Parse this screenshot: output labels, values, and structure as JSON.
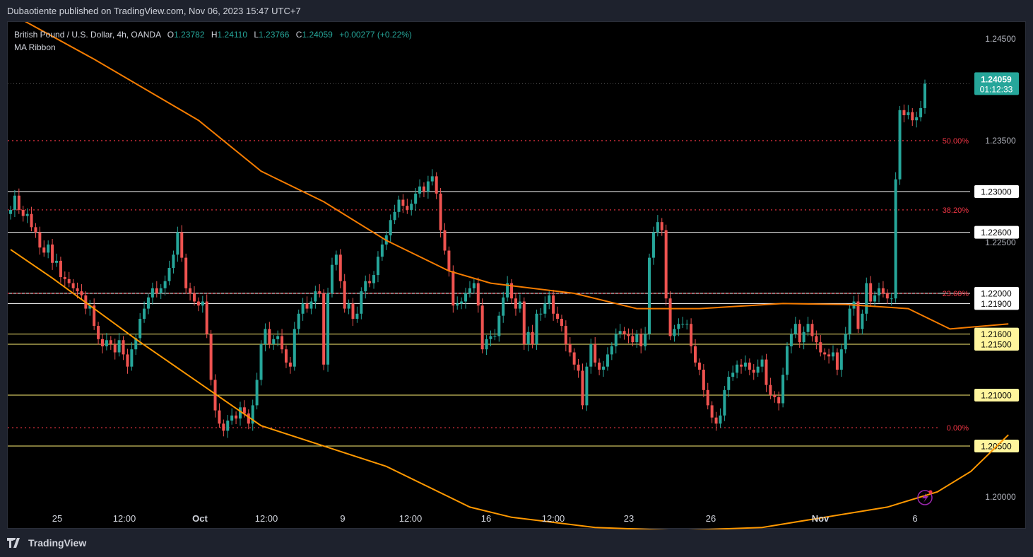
{
  "header": {
    "publish_text": "Dubaotiente published on TradingView.com, Nov 06, 2023 15:47 UTC+7"
  },
  "legend": {
    "symbol": "British Pound / U.S. Dollar, 4h, OANDA",
    "o_label": "O",
    "o_value": "1.23782",
    "h_label": "H",
    "h_value": "1.24110",
    "l_label": "L",
    "l_value": "1.23766",
    "c_label": "C",
    "c_value": "1.24059",
    "change": "+0.00277 (+0.22%)",
    "indicator": "MA Ribbon"
  },
  "price_tag": {
    "price": "1.24059",
    "countdown": "01:12:33"
  },
  "footer": {
    "brand": "TradingView"
  },
  "colors": {
    "up": "#26a69a",
    "down": "#ef5350",
    "ma_fast": "#ff9800",
    "ma_slow": "#f57c00",
    "fib": "#f23645",
    "support_yellow": "#fff176"
  },
  "chart_data": {
    "type": "candlestick",
    "ylim": [
      1.1975,
      1.2475
    ],
    "y_ticks": [
      "1.24500",
      "1.23500",
      "1.22500",
      "1.20000"
    ],
    "x_ticks": [
      "25",
      "12:00",
      "Oct",
      "12:00",
      "9",
      "12:00",
      "16",
      "12:00",
      "23",
      "26",
      "Nov",
      "6"
    ],
    "horizontal_levels": [
      {
        "price": 1.23,
        "label": "1.23000",
        "color": "white"
      },
      {
        "price": 1.226,
        "label": "1.22600",
        "color": "white"
      },
      {
        "price": 1.22,
        "label": "1.22000",
        "color": "white"
      },
      {
        "price": 1.219,
        "label": "1.21900",
        "color": "white"
      },
      {
        "price": 1.216,
        "label": "1.21600",
        "color": "yellow"
      },
      {
        "price": 1.215,
        "label": "1.21500",
        "color": "yellow"
      },
      {
        "price": 1.21,
        "label": "1.21000",
        "color": "yellow"
      },
      {
        "price": 1.205,
        "label": "1.20500",
        "color": "yellow"
      }
    ],
    "fib_levels": [
      {
        "price": 1.235,
        "label": "50.00%"
      },
      {
        "price": 1.2282,
        "label": "38.20%"
      },
      {
        "price": 1.22,
        "label": "23.60%"
      },
      {
        "price": 1.2068,
        "label": "0.00%"
      }
    ],
    "closes": [
      1.2282,
      1.2296,
      1.2282,
      1.2276,
      1.2278,
      1.2265,
      1.226,
      1.2245,
      1.224,
      1.2248,
      1.223,
      1.2232,
      1.2216,
      1.2214,
      1.221,
      1.2205,
      1.2202,
      1.2198,
      1.2185,
      1.2188,
      1.2168,
      1.2155,
      1.2148,
      1.2154,
      1.215,
      1.2142,
      1.2154,
      1.214,
      1.2128,
      1.2145,
      1.2156,
      1.2175,
      1.2185,
      1.2196,
      1.2205,
      1.22,
      1.2205,
      1.2212,
      1.2225,
      1.2238,
      1.226,
      1.2235,
      1.2205,
      1.22,
      1.2192,
      1.2188,
      1.2192,
      1.216,
      1.2115,
      1.2085,
      1.2072,
      1.2065,
      1.2075,
      1.208,
      1.2077,
      1.2088,
      1.2082,
      1.2072,
      1.209,
      1.2115,
      1.215,
      1.2165,
      1.215,
      1.2155,
      1.2158,
      1.2145,
      1.2132,
      1.2128,
      1.2165,
      1.218,
      1.219,
      1.2185,
      1.2192,
      1.2202,
      1.22,
      1.213,
      1.22,
      1.2228,
      1.2238,
      1.2212,
      1.2185,
      1.219,
      1.2175,
      1.218,
      1.2202,
      1.2212,
      1.221,
      1.2218,
      1.2236,
      1.2248,
      1.2257,
      1.2272,
      1.228,
      1.2292,
      1.2286,
      1.2282,
      1.2288,
      1.2298,
      1.2305,
      1.23,
      1.231,
      1.2315,
      1.2298,
      1.2262,
      1.2242,
      1.2222,
      1.2188,
      1.219,
      1.2192,
      1.22,
      1.2205,
      1.221,
      1.2188,
      1.2145,
      1.2155,
      1.2158,
      1.2158,
      1.2178,
      1.2196,
      1.221,
      1.2195,
      1.2185,
      1.2192,
      1.215,
      1.2162,
      1.215,
      1.218,
      1.218,
      1.219,
      1.2198,
      1.218,
      1.2175,
      1.2168,
      1.215,
      1.2142,
      1.213,
      1.2124,
      1.209,
      1.2128,
      1.215,
      1.2132,
      1.2125,
      1.2128,
      1.214,
      1.2148,
      1.216,
      1.2163,
      1.216,
      1.2158,
      1.2152,
      1.216,
      1.2148,
      1.216,
      1.2235,
      1.226,
      1.227,
      1.2262,
      1.2195,
      1.2158,
      1.2165,
      1.217,
      1.217,
      1.217,
      1.2148,
      1.2132,
      1.2125,
      1.2105,
      1.209,
      1.2078,
      1.2072,
      1.208,
      1.2105,
      1.2118,
      1.2122,
      1.213,
      1.2128,
      1.2132,
      1.2125,
      1.2122,
      1.2128,
      1.2135,
      1.211,
      1.21,
      1.2098,
      1.2092,
      1.212,
      1.2148,
      1.216,
      1.217,
      1.2152,
      1.2162,
      1.217,
      1.2158,
      1.2152,
      1.2142,
      1.214,
      1.2138,
      1.2142,
      1.2125,
      1.2145,
      1.216,
      1.2185,
      1.2192,
      1.2165,
      1.218,
      1.221,
      1.2192,
      1.2198,
      1.2205,
      1.22,
      1.2195,
      1.2195,
      1.2312,
      1.238,
      1.2375,
      1.2378,
      1.237,
      1.2373,
      1.2382,
      1.2406
    ],
    "ma_fast": [
      [
        0,
        1.2243
      ],
      [
        10,
        1.2215
      ],
      [
        30,
        1.2155
      ],
      [
        60,
        1.207
      ],
      [
        90,
        1.203
      ],
      [
        110,
        1.199
      ],
      [
        120,
        1.198
      ],
      [
        140,
        1.197
      ],
      [
        160,
        1.1967
      ],
      [
        180,
        1.197
      ],
      [
        210,
        1.199
      ],
      [
        222,
        1.2005
      ],
      [
        230,
        1.2025
      ],
      [
        239,
        1.2061
      ]
    ],
    "ma_slow": [
      [
        0,
        1.2475
      ],
      [
        20,
        1.243
      ],
      [
        45,
        1.237
      ],
      [
        60,
        1.232
      ],
      [
        75,
        1.229
      ],
      [
        90,
        1.2252
      ],
      [
        105,
        1.2222
      ],
      [
        115,
        1.221
      ],
      [
        135,
        1.22
      ],
      [
        150,
        1.2185
      ],
      [
        165,
        1.2185
      ],
      [
        185,
        1.219
      ],
      [
        200,
        1.2189
      ],
      [
        215,
        1.2185
      ],
      [
        225,
        1.2165
      ],
      [
        239,
        1.217
      ]
    ]
  }
}
